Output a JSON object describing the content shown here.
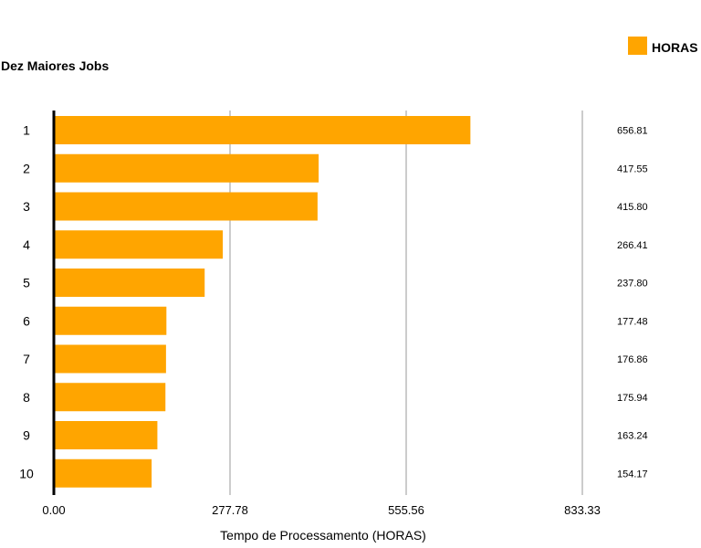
{
  "chart_data": {
    "type": "bar",
    "orientation": "horizontal",
    "title": "Dez Maiores Jobs",
    "xlabel": "Tempo de Processamento (HORAS)",
    "ylabel": "",
    "xlim": [
      0,
      833.33
    ],
    "xticks": [
      "0.00",
      "277.78",
      "555.56",
      "833.33"
    ],
    "grid": true,
    "legend_position": "top-right",
    "categories": [
      "1",
      "2",
      "3",
      "4",
      "5",
      "6",
      "7",
      "8",
      "9",
      "10"
    ],
    "series": [
      {
        "name": "HORAS",
        "color": "#FFA500",
        "values": [
          656.81,
          417.55,
          415.8,
          266.41,
          237.8,
          177.48,
          176.86,
          175.94,
          163.24,
          154.17
        ],
        "value_labels": [
          "656.81",
          "417.55",
          "415.80",
          "266.41",
          "237.80",
          "177.48",
          "176.86",
          "175.94",
          "163.24",
          "154.17"
        ]
      }
    ]
  }
}
